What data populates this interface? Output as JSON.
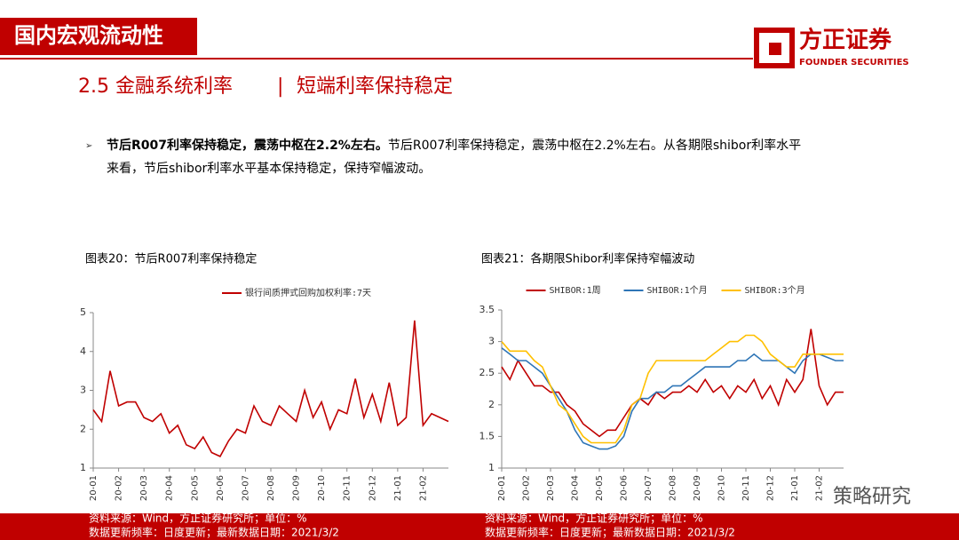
{
  "header": {
    "tag": "国内宏观流动性",
    "logo": "方正证券",
    "logo_en": "FOUNDER SECURITIES"
  },
  "section": {
    "number_title": "2.5 金融系统利率",
    "separator": "|",
    "subtitle": "短端利率保持稳定"
  },
  "bullet": {
    "bold": "节后R007利率保持稳定，震荡中枢在2.2%左右。",
    "text": "节后R007利率保持稳定，震荡中枢在2.2%左右。从各期限shibor利率水平",
    "text2": "来看，节后shibor利率水平基本保持稳定，保持窄幅波动。"
  },
  "chart_data": [
    {
      "type": "line",
      "caption": "图表20：节后R007利率保持稳定",
      "legend": "top",
      "categories": [
        "20-01",
        null,
        null,
        "20-02",
        null,
        null,
        "20-03",
        null,
        null,
        "20-04",
        null,
        null,
        "20-05",
        null,
        null,
        "20-06",
        null,
        null,
        "20-07",
        null,
        null,
        "20-08",
        null,
        null,
        "20-09",
        null,
        null,
        "20-10",
        null,
        null,
        "20-11",
        null,
        null,
        "20-12",
        null,
        null,
        "21-01",
        null,
        null,
        "21-02",
        null,
        null,
        null
      ],
      "series": [
        {
          "name": "银行间质押式回购加权利率:7天",
          "color": "#c00000",
          "values": [
            2.5,
            2.2,
            3.5,
            2.6,
            2.7,
            2.7,
            2.3,
            2.2,
            2.4,
            1.9,
            2.1,
            1.6,
            1.5,
            1.8,
            1.4,
            1.3,
            1.7,
            2.0,
            1.9,
            2.6,
            2.2,
            2.1,
            2.6,
            2.4,
            2.2,
            3.0,
            2.3,
            2.7,
            2.0,
            2.5,
            2.4,
            3.3,
            2.3,
            2.9,
            2.2,
            3.2,
            2.1,
            2.3,
            4.8,
            2.1,
            2.4,
            2.3,
            2.2
          ]
        }
      ],
      "ylim": [
        1,
        5
      ],
      "yticks": [
        1,
        2,
        3,
        4,
        5
      ],
      "source": "资料来源：Wind，方正证券研究所；单位：%",
      "update": "数据更新频率：日度更新；最新数据日期：2021/3/2"
    },
    {
      "type": "line",
      "caption": "图表21：各期限Shibor利率保持窄幅波动",
      "legend": "top",
      "categories": [
        "20-01",
        null,
        null,
        "20-02",
        null,
        null,
        "20-03",
        null,
        null,
        "20-04",
        null,
        null,
        "20-05",
        null,
        null,
        "20-06",
        null,
        null,
        "20-07",
        null,
        null,
        "20-08",
        null,
        null,
        "20-09",
        null,
        null,
        "20-10",
        null,
        null,
        "20-11",
        null,
        null,
        "20-12",
        null,
        null,
        "21-01",
        null,
        null,
        "21-02",
        null,
        null,
        null
      ],
      "series": [
        {
          "name": "SHIBOR:1周",
          "color": "#c00000",
          "values": [
            2.6,
            2.4,
            2.7,
            2.5,
            2.3,
            2.3,
            2.2,
            2.2,
            2.0,
            1.9,
            1.7,
            1.6,
            1.5,
            1.6,
            1.6,
            1.8,
            2.0,
            2.1,
            2.0,
            2.2,
            2.1,
            2.2,
            2.2,
            2.3,
            2.2,
            2.4,
            2.2,
            2.3,
            2.1,
            2.3,
            2.2,
            2.4,
            2.1,
            2.3,
            2.0,
            2.4,
            2.2,
            2.4,
            3.2,
            2.3,
            2.0,
            2.2,
            2.2
          ]
        },
        {
          "name": "SHIBOR:1个月",
          "color": "#2e75b6",
          "values": [
            2.9,
            2.8,
            2.7,
            2.7,
            2.6,
            2.5,
            2.3,
            2.1,
            1.9,
            1.6,
            1.4,
            1.35,
            1.3,
            1.3,
            1.35,
            1.5,
            1.9,
            2.1,
            2.1,
            2.2,
            2.2,
            2.3,
            2.3,
            2.4,
            2.5,
            2.6,
            2.6,
            2.6,
            2.6,
            2.7,
            2.7,
            2.8,
            2.7,
            2.7,
            2.7,
            2.6,
            2.5,
            2.7,
            2.8,
            2.8,
            2.75,
            2.7,
            2.7
          ]
        },
        {
          "name": "SHIBOR:3个月",
          "color": "#ffc000",
          "values": [
            3.0,
            2.85,
            2.85,
            2.85,
            2.7,
            2.6,
            2.3,
            2.0,
            1.9,
            1.7,
            1.5,
            1.4,
            1.4,
            1.4,
            1.4,
            1.6,
            2.0,
            2.1,
            2.5,
            2.7,
            2.7,
            2.7,
            2.7,
            2.7,
            2.7,
            2.7,
            2.8,
            2.9,
            3.0,
            3.0,
            3.1,
            3.1,
            3.0,
            2.8,
            2.7,
            2.6,
            2.6,
            2.8,
            2.8,
            2.8,
            2.8,
            2.8,
            2.8
          ]
        }
      ],
      "ylim": [
        1,
        3.5
      ],
      "yticks": [
        1,
        1.5,
        2,
        2.5,
        3,
        3.5
      ],
      "source": "资料来源：Wind，方正证券研究所；单位：%",
      "update": "数据更新频率：日度更新；最新数据日期：2021/3/2"
    }
  ],
  "watermark": "策略研究"
}
